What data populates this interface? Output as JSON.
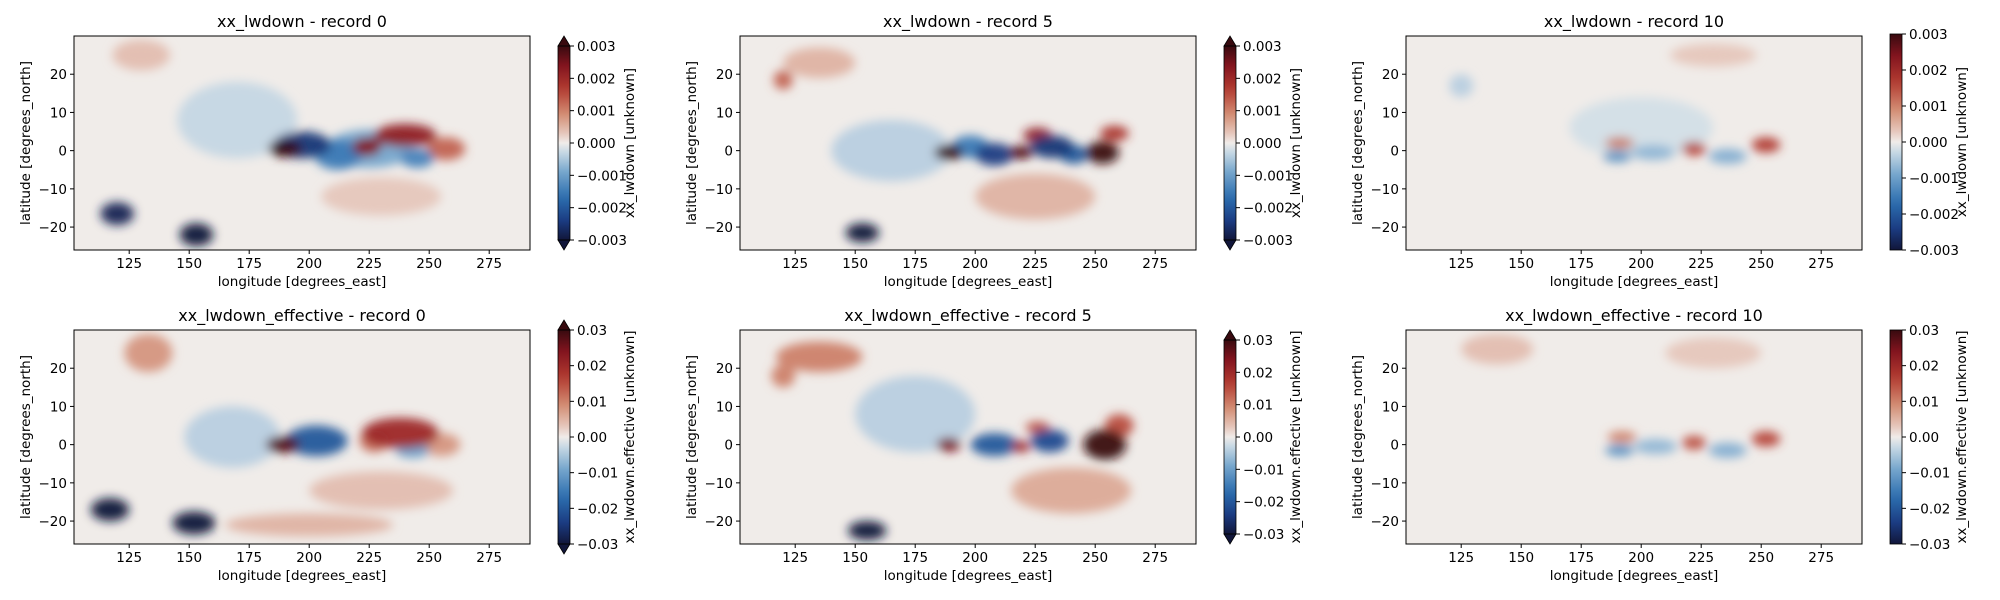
{
  "figure": {
    "background": "#ffffff"
  },
  "chart_data": [
    {
      "type": "heatmap",
      "title": "xx_lwdown - record 0",
      "xlabel": "longitude [degrees_east]",
      "ylabel": "latitude [degrees_north]",
      "xlim": [
        102,
        292
      ],
      "ylim": [
        -26,
        30
      ],
      "x_ticks": [
        125,
        150,
        175,
        200,
        225,
        250,
        275
      ],
      "y_ticks": [
        -20,
        -10,
        0,
        10,
        20
      ],
      "colorbar": {
        "label": "xx_lwdown [unknown]",
        "vmin": -0.003,
        "vmax": 0.003,
        "extend": "both",
        "ticks": [
          0.003,
          0.002,
          0.001,
          0.0,
          -0.001,
          -0.002,
          -0.003
        ],
        "tick_labels": [
          "0.003",
          "0.002",
          "0.001",
          "0.000",
          "−0.001",
          "−0.002",
          "−0.003"
        ]
      },
      "features": [
        {
          "lon": 190,
          "lat": 0.5,
          "value": 0.0035,
          "rx": 7,
          "ry": 2.2
        },
        {
          "lon": 197,
          "lat": 1.5,
          "value": -0.0025,
          "rx": 12,
          "ry": 3.5
        },
        {
          "lon": 212,
          "lat": -1,
          "value": -0.0015,
          "rx": 10,
          "ry": 4
        },
        {
          "lon": 224,
          "lat": 1,
          "value": 0.0024,
          "rx": 6,
          "ry": 2.4
        },
        {
          "lon": 240,
          "lat": 4,
          "value": 0.0022,
          "rx": 13,
          "ry": 3
        },
        {
          "lon": 245,
          "lat": -2,
          "value": -0.0014,
          "rx": 7,
          "ry": 2.5
        },
        {
          "lon": 257,
          "lat": 0.5,
          "value": 0.0013,
          "rx": 8,
          "ry": 3
        },
        {
          "lon": 225,
          "lat": 0.5,
          "value": -0.0009,
          "rx": 18,
          "ry": 5
        },
        {
          "lon": 120,
          "lat": -16.5,
          "value": -0.0028,
          "rx": 7,
          "ry": 3
        },
        {
          "lon": 153,
          "lat": -22,
          "value": -0.0033,
          "rx": 7,
          "ry": 3
        },
        {
          "lon": 170,
          "lat": 8,
          "value": -0.0003,
          "rx": 25,
          "ry": 10
        },
        {
          "lon": 130,
          "lat": 25,
          "value": 0.0004,
          "rx": 12,
          "ry": 4
        },
        {
          "lon": 230,
          "lat": -12,
          "value": 0.0003,
          "rx": 25,
          "ry": 5
        }
      ]
    },
    {
      "type": "heatmap",
      "title": "xx_lwdown - record 5",
      "xlabel": "longitude [degrees_east]",
      "ylabel": "latitude [degrees_north]",
      "xlim": [
        102,
        292
      ],
      "ylim": [
        -26,
        30
      ],
      "x_ticks": [
        125,
        150,
        175,
        200,
        225,
        250,
        275
      ],
      "y_ticks": [
        -20,
        -10,
        0,
        10,
        20
      ],
      "colorbar": {
        "label": "xx_lwdown [unknown]",
        "vmin": -0.003,
        "vmax": 0.003,
        "extend": "both",
        "ticks": [
          0.003,
          0.002,
          0.001,
          0.0,
          -0.001,
          -0.002,
          -0.003
        ],
        "tick_labels": [
          "0.003",
          "0.002",
          "0.001",
          "0.000",
          "−0.001",
          "−0.002",
          "−0.003"
        ]
      },
      "features": [
        {
          "lon": 189,
          "lat": -0.5,
          "value": 0.0034,
          "rx": 6,
          "ry": 2
        },
        {
          "lon": 198,
          "lat": 1,
          "value": -0.0015,
          "rx": 8,
          "ry": 3
        },
        {
          "lon": 208,
          "lat": -1,
          "value": -0.0024,
          "rx": 8,
          "ry": 3
        },
        {
          "lon": 219,
          "lat": -0.5,
          "value": 0.0028,
          "rx": 5,
          "ry": 1.8
        },
        {
          "lon": 226,
          "lat": 4,
          "value": 0.0022,
          "rx": 6,
          "ry": 2
        },
        {
          "lon": 232,
          "lat": 1,
          "value": -0.0025,
          "rx": 9,
          "ry": 3
        },
        {
          "lon": 241,
          "lat": -1,
          "value": -0.002,
          "rx": 6,
          "ry": 2.5
        },
        {
          "lon": 253,
          "lat": -0.5,
          "value": 0.0045,
          "rx": 7,
          "ry": 3
        },
        {
          "lon": 258,
          "lat": 4.5,
          "value": 0.0018,
          "rx": 6,
          "ry": 2
        },
        {
          "lon": 153,
          "lat": -21.5,
          "value": -0.0035,
          "rx": 7,
          "ry": 2.5
        },
        {
          "lon": 120,
          "lat": 18.5,
          "value": 0.0013,
          "rx": 4,
          "ry": 2.5
        },
        {
          "lon": 135,
          "lat": 23,
          "value": 0.0005,
          "rx": 15,
          "ry": 4
        },
        {
          "lon": 225,
          "lat": -12,
          "value": 0.0005,
          "rx": 25,
          "ry": 6
        },
        {
          "lon": 165,
          "lat": 0,
          "value": -0.0004,
          "rx": 25,
          "ry": 8
        }
      ]
    },
    {
      "type": "heatmap",
      "title": "xx_lwdown - record 10",
      "xlabel": "longitude [degrees_east]",
      "ylabel": "latitude [degrees_north]",
      "xlim": [
        102,
        292
      ],
      "ylim": [
        -26,
        30
      ],
      "x_ticks": [
        125,
        150,
        175,
        200,
        225,
        250,
        275
      ],
      "y_ticks": [
        -20,
        -10,
        0,
        10,
        20
      ],
      "colorbar": {
        "label": "xx_lwdown [unknown]",
        "vmin": -0.003,
        "vmax": 0.003,
        "extend": "neither",
        "ticks": [
          0.003,
          0.002,
          0.001,
          0.0,
          -0.001,
          -0.002,
          -0.003
        ],
        "tick_labels": [
          "0.003",
          "0.002",
          "0.001",
          "0.000",
          "−0.001",
          "−0.002",
          "−0.003"
        ]
      },
      "features": [
        {
          "lon": 191,
          "lat": 2,
          "value": 0.0011,
          "rx": 6,
          "ry": 1.5
        },
        {
          "lon": 190,
          "lat": -1.5,
          "value": -0.0012,
          "rx": 6,
          "ry": 1.5
        },
        {
          "lon": 205,
          "lat": -0.5,
          "value": -0.0007,
          "rx": 9,
          "ry": 2
        },
        {
          "lon": 222,
          "lat": 0.5,
          "value": 0.0016,
          "rx": 5,
          "ry": 1.8
        },
        {
          "lon": 236,
          "lat": -1.5,
          "value": -0.0008,
          "rx": 8,
          "ry": 2
        },
        {
          "lon": 252,
          "lat": 1.5,
          "value": 0.0017,
          "rx": 6,
          "ry": 2
        },
        {
          "lon": 125,
          "lat": 17,
          "value": -0.0004,
          "rx": 5,
          "ry": 3
        },
        {
          "lon": 200,
          "lat": 6,
          "value": -0.0002,
          "rx": 30,
          "ry": 8
        },
        {
          "lon": 230,
          "lat": 25,
          "value": 0.0003,
          "rx": 18,
          "ry": 3
        }
      ]
    },
    {
      "type": "heatmap",
      "title": "xx_lwdown_effective - record 0",
      "xlabel": "longitude [degrees_east]",
      "ylabel": "latitude [degrees_north]",
      "xlim": [
        102,
        292
      ],
      "ylim": [
        -26,
        30
      ],
      "x_ticks": [
        125,
        150,
        175,
        200,
        225,
        250,
        275
      ],
      "y_ticks": [
        -20,
        -10,
        0,
        10,
        20
      ],
      "colorbar": {
        "label": "xx_lwdown.effective [unknown]",
        "vmin": -0.03,
        "vmax": 0.03,
        "extend": "both",
        "ticks": [
          0.03,
          0.02,
          0.01,
          0.0,
          -0.01,
          -0.02,
          -0.03
        ],
        "tick_labels": [
          "0.03",
          "0.02",
          "0.01",
          "0.00",
          "−0.01",
          "−0.02",
          "−0.03"
        ]
      },
      "features": [
        {
          "lon": 189,
          "lat": 0,
          "value": 0.028,
          "rx": 7,
          "ry": 2.2
        },
        {
          "lon": 203,
          "lat": 1,
          "value": -0.02,
          "rx": 13,
          "ry": 4
        },
        {
          "lon": 238,
          "lat": 3,
          "value": 0.02,
          "rx": 16,
          "ry": 4
        },
        {
          "lon": 227,
          "lat": 1,
          "value": 0.012,
          "rx": 6,
          "ry": 3
        },
        {
          "lon": 243,
          "lat": -1.5,
          "value": -0.01,
          "rx": 7,
          "ry": 2
        },
        {
          "lon": 255,
          "lat": 0,
          "value": 0.008,
          "rx": 8,
          "ry": 3
        },
        {
          "lon": 117,
          "lat": -17,
          "value": -0.033,
          "rx": 8,
          "ry": 3
        },
        {
          "lon": 152,
          "lat": -20.5,
          "value": -0.038,
          "rx": 9,
          "ry": 3
        },
        {
          "lon": 133,
          "lat": 24,
          "value": 0.008,
          "rx": 10,
          "ry": 5
        },
        {
          "lon": 200,
          "lat": -21,
          "value": 0.005,
          "rx": 35,
          "ry": 3
        },
        {
          "lon": 230,
          "lat": -12,
          "value": 0.004,
          "rx": 30,
          "ry": 5
        },
        {
          "lon": 168,
          "lat": 2,
          "value": -0.004,
          "rx": 20,
          "ry": 8
        }
      ]
    },
    {
      "type": "heatmap",
      "title": "xx_lwdown_effective - record 5",
      "xlabel": "longitude [degrees_east]",
      "ylabel": "latitude [degrees_north]",
      "xlim": [
        102,
        292
      ],
      "ylim": [
        -26,
        30
      ],
      "x_ticks": [
        125,
        150,
        175,
        200,
        225,
        250,
        275
      ],
      "y_ticks": [
        -20,
        -10,
        0,
        10,
        20
      ],
      "colorbar": {
        "label": "xx_lwdown.effective [unknown]",
        "vmin": -0.03,
        "vmax": 0.03,
        "extend": "both",
        "ticks": [
          0.03,
          0.02,
          0.01,
          0.0,
          -0.01,
          -0.02,
          -0.03
        ],
        "tick_labels": [
          "0.03",
          "0.02",
          "0.01",
          "0.00",
          "−0.01",
          "−0.02",
          "−0.03"
        ]
      },
      "features": [
        {
          "lon": 189,
          "lat": 0,
          "value": 0.025,
          "rx": 5,
          "ry": 1.8
        },
        {
          "lon": 208,
          "lat": 0,
          "value": -0.02,
          "rx": 10,
          "ry": 3
        },
        {
          "lon": 231,
          "lat": 1,
          "value": -0.022,
          "rx": 8,
          "ry": 3
        },
        {
          "lon": 219,
          "lat": -0.5,
          "value": 0.02,
          "rx": 4,
          "ry": 1.5
        },
        {
          "lon": 226,
          "lat": 4.5,
          "value": 0.015,
          "rx": 5,
          "ry": 1.5
        },
        {
          "lon": 254,
          "lat": 0,
          "value": 0.045,
          "rx": 9,
          "ry": 4
        },
        {
          "lon": 260,
          "lat": 5,
          "value": 0.015,
          "rx": 6,
          "ry": 3
        },
        {
          "lon": 155,
          "lat": -22.5,
          "value": -0.035,
          "rx": 8,
          "ry": 2.5
        },
        {
          "lon": 135,
          "lat": 23,
          "value": 0.01,
          "rx": 18,
          "ry": 4
        },
        {
          "lon": 120,
          "lat": 18,
          "value": 0.01,
          "rx": 5,
          "ry": 3
        },
        {
          "lon": 240,
          "lat": -12,
          "value": 0.006,
          "rx": 25,
          "ry": 6
        },
        {
          "lon": 175,
          "lat": 8,
          "value": -0.004,
          "rx": 25,
          "ry": 10
        }
      ]
    },
    {
      "type": "heatmap",
      "title": "xx_lwdown_effective - record 10",
      "xlabel": "longitude [degrees_east]",
      "ylabel": "latitude [degrees_north]",
      "xlim": [
        102,
        292
      ],
      "ylim": [
        -26,
        30
      ],
      "x_ticks": [
        125,
        150,
        175,
        200,
        225,
        250,
        275
      ],
      "y_ticks": [
        -20,
        -10,
        0,
        10,
        20
      ],
      "colorbar": {
        "label": "xx_lwdown.effective [unknown]",
        "vmin": -0.03,
        "vmax": 0.03,
        "extend": "neither",
        "ticks": [
          0.03,
          0.02,
          0.01,
          0.0,
          -0.01,
          -0.02,
          -0.03
        ],
        "tick_labels": [
          "0.03",
          "0.02",
          "0.01",
          "0.00",
          "−0.01",
          "−0.02",
          "−0.03"
        ]
      },
      "features": [
        {
          "lon": 192,
          "lat": 2,
          "value": 0.01,
          "rx": 6,
          "ry": 1.5
        },
        {
          "lon": 191,
          "lat": -1.5,
          "value": -0.012,
          "rx": 6,
          "ry": 1.5
        },
        {
          "lon": 206,
          "lat": -0.5,
          "value": -0.007,
          "rx": 9,
          "ry": 2
        },
        {
          "lon": 222,
          "lat": 0.5,
          "value": 0.015,
          "rx": 5,
          "ry": 1.8
        },
        {
          "lon": 236,
          "lat": -1.5,
          "value": -0.008,
          "rx": 8,
          "ry": 2
        },
        {
          "lon": 252,
          "lat": 1.5,
          "value": 0.016,
          "rx": 6,
          "ry": 2
        },
        {
          "lon": 140,
          "lat": 25,
          "value": 0.004,
          "rx": 15,
          "ry": 4
        },
        {
          "lon": 230,
          "lat": 24,
          "value": 0.003,
          "rx": 20,
          "ry": 4
        }
      ]
    }
  ]
}
